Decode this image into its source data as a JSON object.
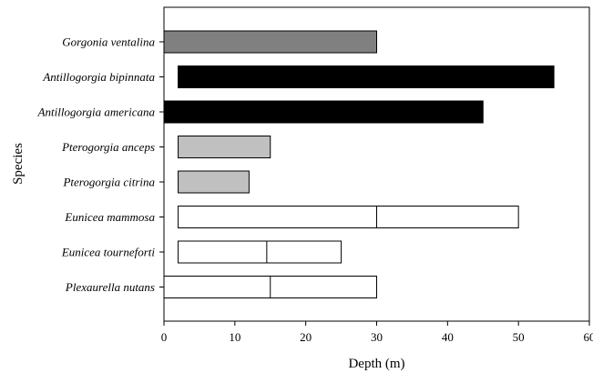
{
  "chart_data": {
    "type": "bar",
    "orientation": "horizontal",
    "title": "",
    "xlabel": "Depth (m)",
    "ylabel": "Species",
    "xlim": [
      0,
      60
    ],
    "x_ticks": [
      0,
      10,
      20,
      30,
      40,
      50,
      60
    ],
    "grid": false,
    "legend": "none",
    "categories": [
      "Gorgonia ventalina",
      "Antillogorgia bipinnata",
      "Antillogorgia americana",
      "Pterogorgia anceps",
      "Pterogorgia citrina",
      "Eunicea mammosa",
      "Eunicea tourneforti",
      "Plexaurella nutans"
    ],
    "ranges": [
      {
        "species": "Gorgonia ventalina",
        "min": 0,
        "max": 30,
        "color": "#808080"
      },
      {
        "species": "Antillogorgia bipinnata",
        "min": 2,
        "max": 55,
        "color": "#000000"
      },
      {
        "species": "Antillogorgia americana",
        "min": 0,
        "max": 45,
        "color": "#000000"
      },
      {
        "species": "Pterogorgia anceps",
        "min": 2,
        "max": 15,
        "color": "#c0c0c0"
      },
      {
        "species": "Pterogorgia citrina",
        "min": 2,
        "max": 12,
        "color": "#c0c0c0"
      },
      {
        "species": "Eunicea mammosa",
        "min": 2,
        "max": 50,
        "split": 30,
        "color": "#ffffff"
      },
      {
        "species": "Eunicea tourneforti",
        "min": 2,
        "max": 25,
        "split": 14.5,
        "color": "#ffffff"
      },
      {
        "species": "Plexaurella nutans",
        "min": 0,
        "max": 30,
        "split": 15,
        "color": "#ffffff"
      }
    ]
  }
}
